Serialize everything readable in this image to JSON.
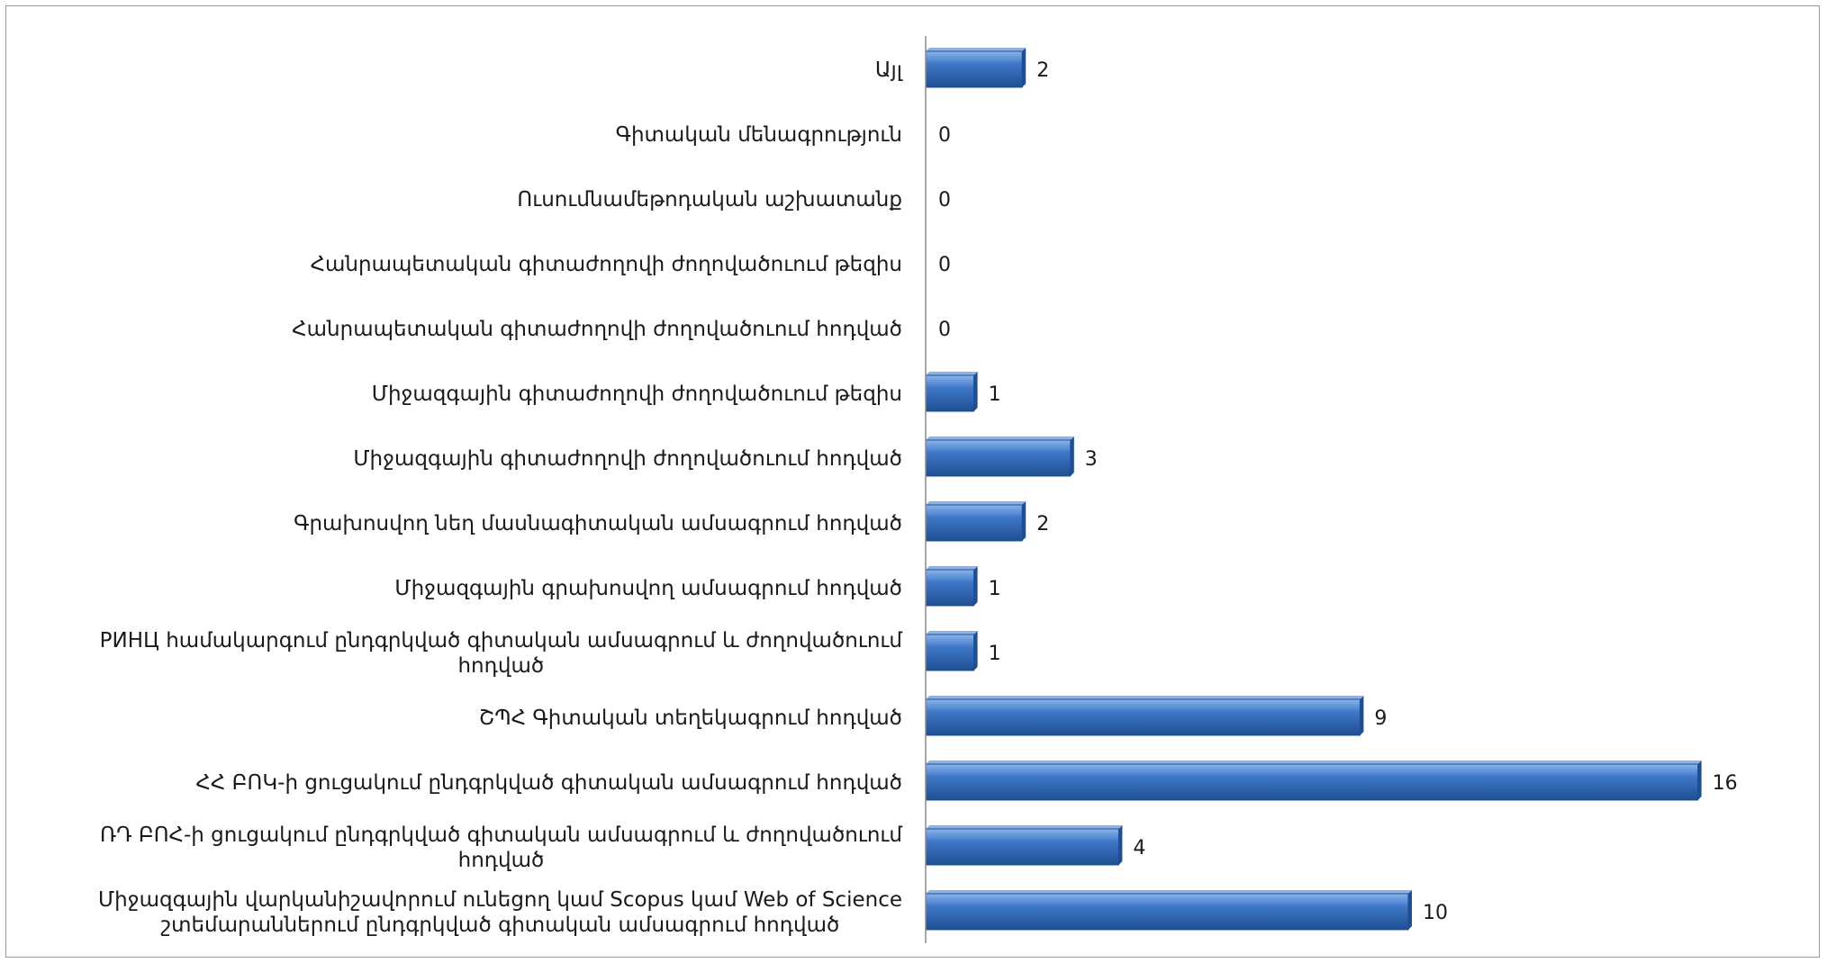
{
  "chart_data": {
    "type": "bar",
    "orientation": "horizontal",
    "categories": [
      "Այլ",
      "Գիտական մենագրություն",
      "Ուսումնամեթոդական աշխատանք",
      "Հանրապետական գիտաժողովի ժողովածուում թեզիս",
      "Հանրապետական գիտաժողովի ժողովածուում հոդված",
      "Միջազգային գիտաժողովի ժողովածուում թեզիս",
      "Միջազգային գիտաժողովի ժողովածուում հոդված",
      "Գրախոսվող նեղ մասնագիտական ամսագրում հոդված",
      "Միջազգային գրախոսվող ամսագրում հոդված",
      "РИНЦ համակարգում ընդգրկված գիտական ամսագրում և ժողովածուում հոդված",
      "ՇՊՀ Գիտական տեղեկագրում հոդված",
      "ՀՀ ԲՈԿ-ի ցուցակում ընդգրկված գիտական ամսագրում հոդված",
      "ՌԴ ԲՈՀ-ի ցուցակում ընդգրկված  գիտական ամսագրում և ժողովածուում հոդված",
      "Միջազգային վարկանիշավորում ունեցող կամ Scopus կամ Web of Science շտեմարաններում ընդգրկված  գիտական ամսագրում հոդված"
    ],
    "label_lines": [
      [
        "Այլ"
      ],
      [
        "Գիտական մենագրություն"
      ],
      [
        "Ուսումնամեթոդական աշխատանք"
      ],
      [
        "Հանրապետական գիտաժողովի ժողովածուում թեզիս"
      ],
      [
        "Հանրապետական գիտաժողովի ժողովածուում հոդված"
      ],
      [
        "Միջազգային գիտաժողովի ժողովածուում թեզիս"
      ],
      [
        "Միջազգային գիտաժողովի ժողովածուում հոդված"
      ],
      [
        "Գրախոսվող նեղ մասնագիտական ամսագրում հոդված"
      ],
      [
        "Միջազգային գրախոսվող ամսագրում հոդված"
      ],
      [
        "РИНЦ համակարգում ընդգրկված գիտական ամսագրում և ժողովածուում",
        "հոդված"
      ],
      [
        "ՇՊՀ Գիտական տեղեկագրում հոդված"
      ],
      [
        "ՀՀ ԲՈԿ-ի ցուցակում ընդգրկված գիտական ամսագրում հոդված"
      ],
      [
        "ՌԴ ԲՈՀ-ի ցուցակում ընդգրկված  գիտական ամսագրում և ժողովածուում",
        "հոդված"
      ],
      [
        "Միջազգային վարկանիշավորում ունեցող կամ Scopus կամ Web of Science",
        "շտեմարաններում ընդգրկված  գիտական ամսագրում հոդված"
      ]
    ],
    "values": [
      2,
      0,
      0,
      0,
      0,
      1,
      3,
      2,
      1,
      1,
      9,
      16,
      4,
      10
    ],
    "value_labels": [
      "2",
      "0",
      "0",
      "0",
      "0",
      "1",
      "3",
      "2",
      "1",
      "1",
      "9",
      "16",
      "4",
      "10"
    ],
    "title": "",
    "xlabel": "",
    "ylabel": "",
    "xlim": [
      0,
      16
    ],
    "grid": false,
    "legend": "none",
    "colors": {
      "bar": "#3f78c8",
      "bar_light": "#8db4ea",
      "bar_dark": "#1f4e91",
      "axis": "#8a8a8a"
    }
  }
}
